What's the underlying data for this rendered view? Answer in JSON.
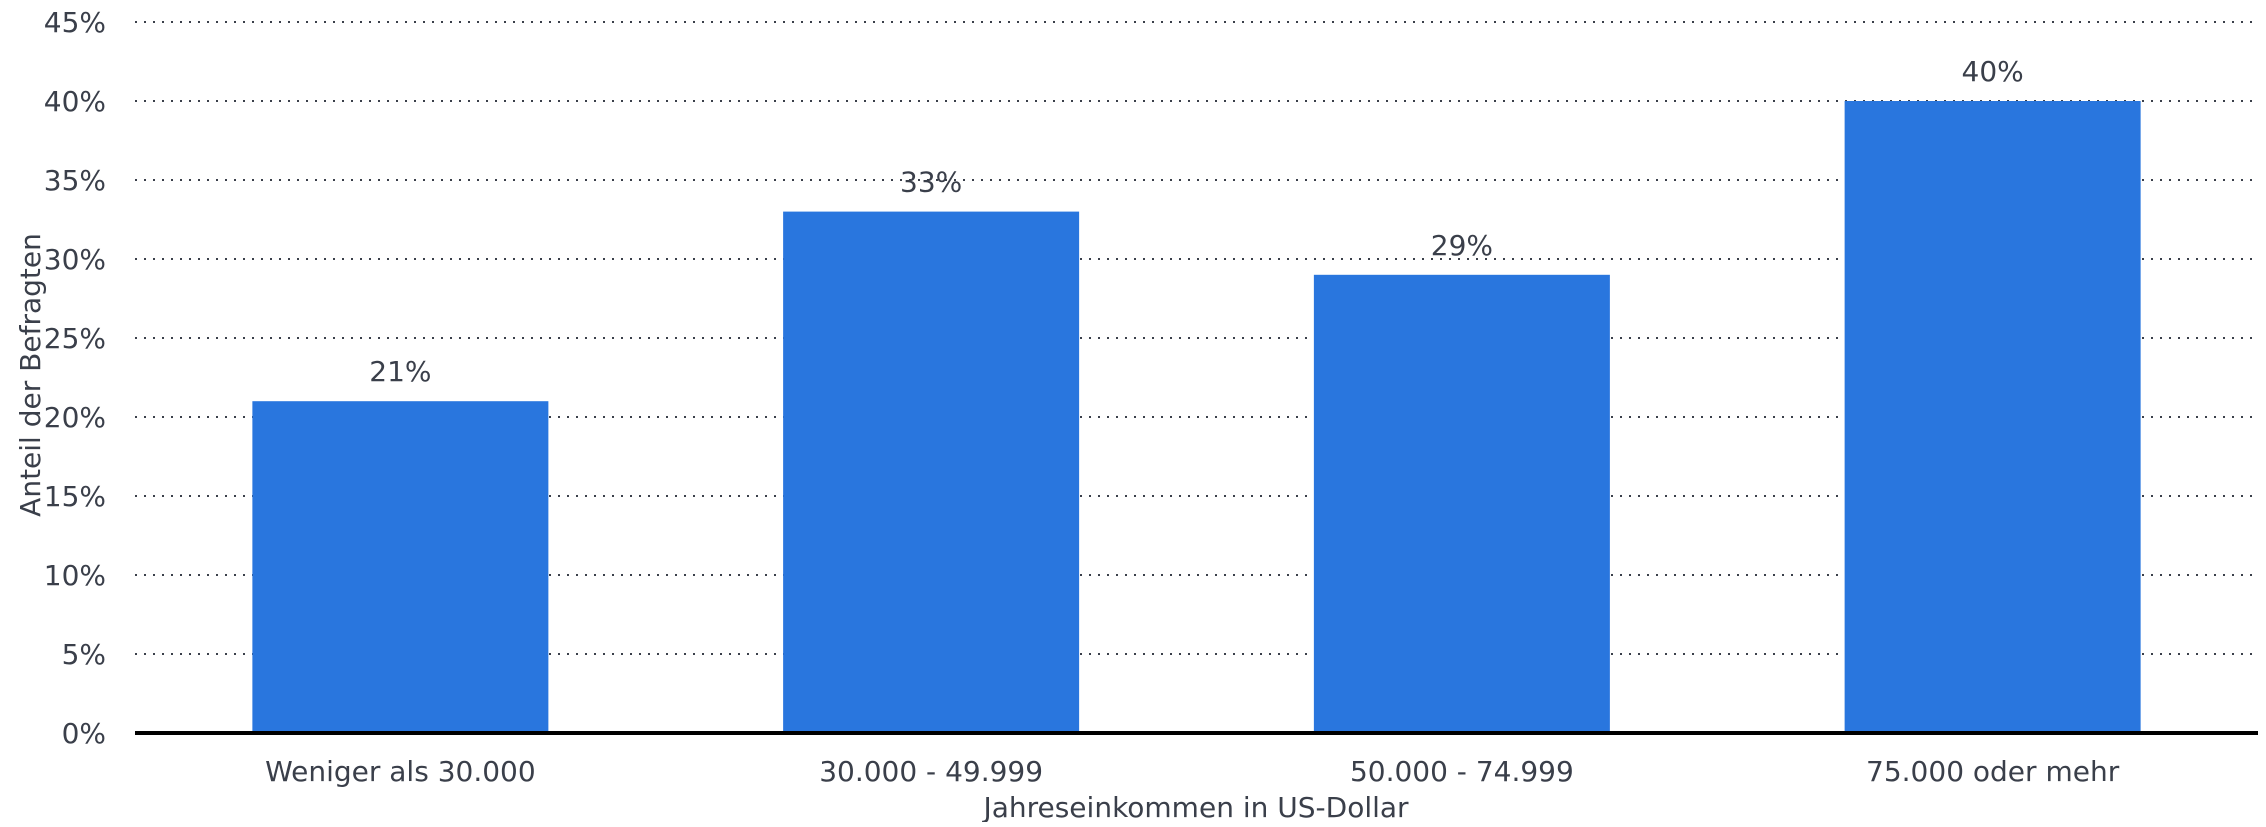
{
  "chart_data": {
    "type": "bar",
    "title": "",
    "xlabel": "Jahreseinkommen in US-Dollar",
    "ylabel": "Anteil der Befragten",
    "categories": [
      "Weniger als 30.000",
      "30.000 - 49.999",
      "50.000 - 74.999",
      "75.000 oder mehr"
    ],
    "values": [
      21,
      33,
      29,
      40
    ],
    "value_labels": [
      "21%",
      "33%",
      "29%",
      "40%"
    ],
    "ylim": [
      0,
      45
    ],
    "yticks": [
      0,
      5,
      10,
      15,
      20,
      25,
      30,
      35,
      40,
      45
    ],
    "ytick_labels": [
      "0%",
      "5%",
      "10%",
      "15%",
      "20%",
      "25%",
      "30%",
      "35%",
      "40%",
      "45%"
    ],
    "grid": true,
    "legend": "none",
    "colors": {
      "bar": "#2976de",
      "text": "#3a3f4a",
      "baseline": "#000000"
    }
  }
}
